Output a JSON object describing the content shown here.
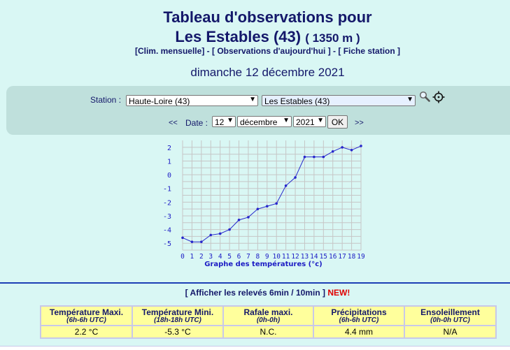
{
  "page": {
    "title_line1": "Tableau d'observations pour",
    "title_line2": "Les Estables (43)",
    "altitude": "( 1350 m )",
    "links": [
      "[Clim. mensuelle]",
      "[ Observations d'aujourd'hui ]",
      "[ Fiche station ]"
    ],
    "link_separator": " - ",
    "date_heading": "dimanche 12 décembre 2021"
  },
  "selector": {
    "station_label": "Station :",
    "department": "Haute-Loire (43)",
    "station": "Les Estables (43)",
    "search_icon": "magnifier-icon",
    "locate_icon": "crosshair-icon",
    "prev": "<<",
    "next": ">>",
    "date_label": "Date :",
    "day": "12",
    "month": "décembre",
    "year": "2021",
    "ok": "OK"
  },
  "chart_data": {
    "type": "line",
    "xlabel": "Graphe des températures (°c)",
    "x": [
      0,
      1,
      2,
      3,
      4,
      5,
      6,
      7,
      8,
      9,
      10,
      11,
      12,
      13,
      14,
      15,
      16,
      17,
      18,
      19
    ],
    "y_tick_labels": [
      "2",
      "1",
      "0",
      "-1",
      "-2",
      "-3",
      "-4",
      "-5"
    ],
    "xlim": [
      0,
      19
    ],
    "ylim": [
      -5.5,
      2.3
    ],
    "grid": true,
    "series": [
      {
        "values": [
          -4.6,
          -4.9,
          -4.9,
          -4.4,
          -4.3,
          -4.0,
          -3.3,
          -3.1,
          -2.5,
          -2.3,
          -2.1,
          -0.8,
          -0.2,
          1.3,
          1.3,
          1.3,
          1.7,
          2.0,
          1.8,
          2.1
        ],
        "color": "#2727cc"
      }
    ],
    "colors": {
      "grid": "#c6c6c6",
      "axis_text": "#1c1cc4",
      "line": "#2727cc"
    }
  },
  "releves": {
    "text": "[ Afficher les relevés 6min / 10min ]",
    "new_badge": "NEW!"
  },
  "summary": {
    "headers": [
      {
        "title": "Température Maxi.",
        "sub": "(6h-6h UTC)"
      },
      {
        "title": "Température Mini.",
        "sub": "(18h-18h UTC)"
      },
      {
        "title": "Rafale maxi.",
        "sub": "(0h-0h)"
      },
      {
        "title": "Précipitations",
        "sub": "(6h-6h UTC)"
      },
      {
        "title": "Ensoleillement",
        "sub": "(0h-0h UTC)"
      }
    ],
    "values": [
      "2.2 °C",
      "-5.3 °C",
      "N.C.",
      "4.4 mm",
      "N/A"
    ]
  }
}
